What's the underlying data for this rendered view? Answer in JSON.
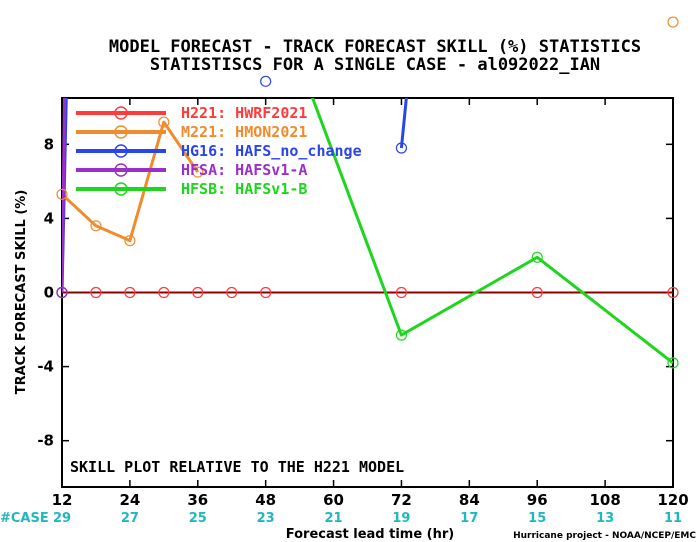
{
  "chart_data": {
    "type": "line",
    "title": "MODEL FORECAST - TRACK FORECAST SKILL (%) STATISTICS",
    "subtitle": "STATISTISCS FOR A SINGLE CASE - al092022_IAN",
    "xlabel": "Forecast lead time (hr)",
    "ylabel": "TRACK FORECAST SKILL (%)",
    "xlim": [
      12,
      120
    ],
    "ylim": [
      -10.5,
      10.5
    ],
    "xticks": [
      12,
      24,
      36,
      48,
      60,
      72,
      84,
      96,
      108,
      120
    ],
    "yticks": [
      -8,
      -4,
      0,
      4,
      8
    ],
    "case_label": "#CASE",
    "case_counts": [
      "29",
      "27",
      "25",
      "23",
      "21",
      "19",
      "17",
      "15",
      "13",
      "11"
    ],
    "annotation": "SKILL PLOT RELATIVE TO THE H221 MODEL",
    "credit": "Hurricane project - NOAA/NCEP/EMC",
    "legend_position": "top-left",
    "series": [
      {
        "name": "H221: HWRF2021",
        "color": "#ff3b3b",
        "line": false,
        "points": [
          [
            12,
            0
          ],
          [
            18,
            0
          ],
          [
            24,
            0
          ],
          [
            30,
            0
          ],
          [
            36,
            0
          ],
          [
            42,
            0
          ],
          [
            48,
            0
          ],
          [
            72,
            0
          ],
          [
            96,
            0
          ],
          [
            120,
            0
          ]
        ]
      },
      {
        "name": "M221: HMON2021",
        "color": "#f08c2d",
        "line": true,
        "points": [
          [
            12,
            5.3
          ],
          [
            18,
            3.6
          ],
          [
            24,
            2.8
          ],
          [
            30,
            9.2
          ],
          [
            36,
            6.5
          ],
          [
            120,
            14.6
          ]
        ],
        "segments": [
          [
            0,
            1,
            2,
            3,
            4
          ]
        ]
      },
      {
        "name": "HG16: HAFS_no_change",
        "color": "#2b46e8",
        "line": true,
        "points": [
          [
            12,
            0
          ],
          [
            13,
            14
          ],
          [
            48,
            11.4
          ],
          [
            72,
            7.8
          ],
          [
            74,
            14
          ]
        ],
        "segments": [
          [
            0,
            1
          ],
          [
            3,
            4
          ]
        ],
        "markers": [
          0,
          2,
          3
        ]
      },
      {
        "name": "HFSA: HAFSv1-A",
        "color": "#9b2fc9",
        "line": true,
        "points": [
          [
            12,
            0
          ],
          [
            12.6,
            14
          ]
        ],
        "markers": [
          0
        ]
      },
      {
        "name": "HFSB: HAFSv1-B",
        "color": "#1ed61e",
        "line": true,
        "points": [
          [
            52,
            14
          ],
          [
            72,
            -2.3
          ],
          [
            96,
            1.9
          ],
          [
            120,
            -3.8
          ]
        ],
        "markers": [
          1,
          2,
          3
        ]
      }
    ]
  }
}
